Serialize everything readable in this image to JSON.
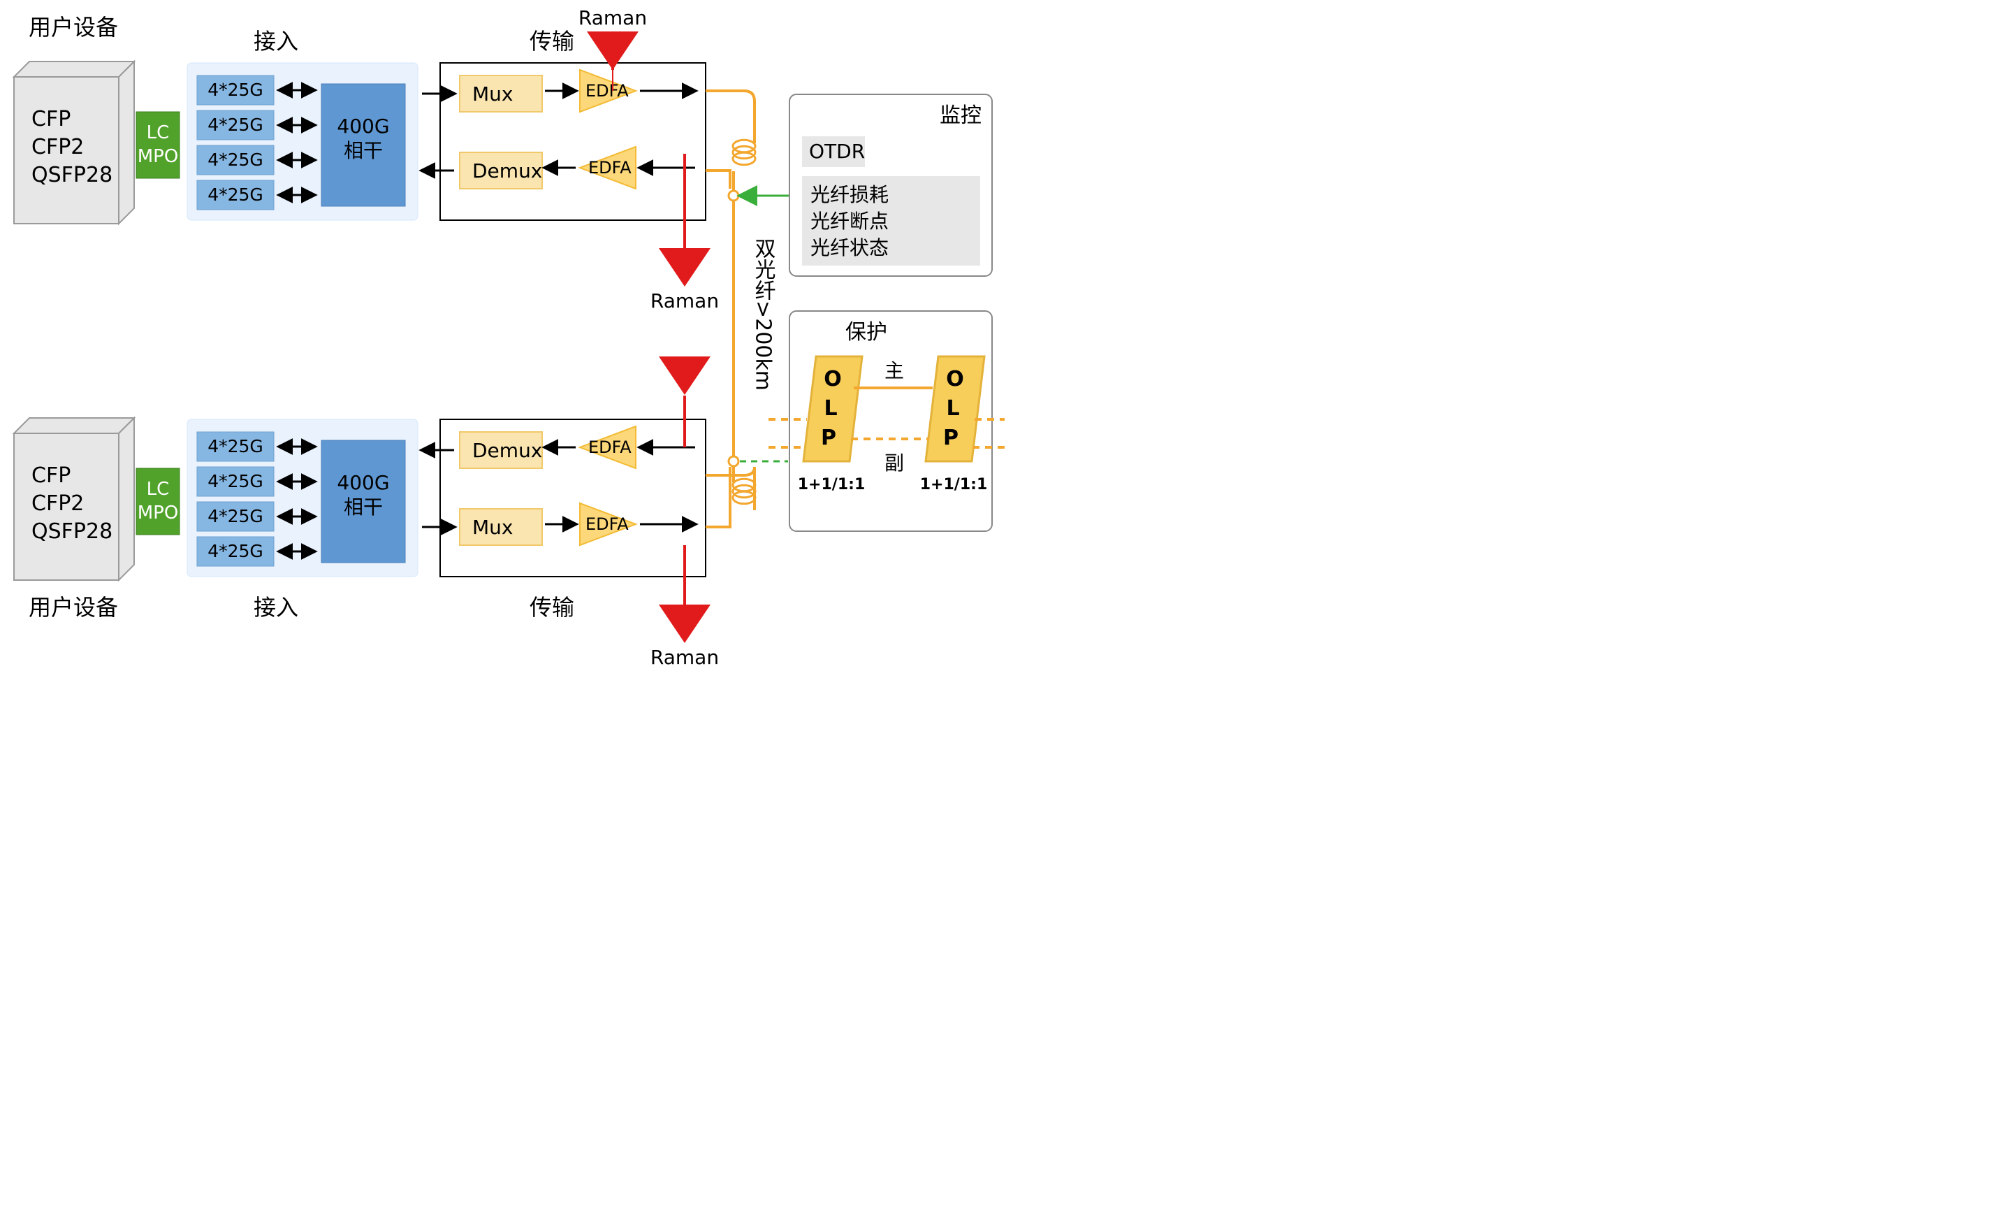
{
  "colors": {
    "gray_fill": "#e7e7e7",
    "gray_stroke": "#9a9a9a",
    "green": "#50a22a",
    "green_stroke": "#3d7d1f",
    "lightblue_bg": "#e9f2fd",
    "lightblue_stroke": "#d6e7fb",
    "blue_box": "#86b6e2",
    "blue_box_stroke": "#6fa3d3",
    "blue_strong": "#5f97d2",
    "blue_strong_stroke": "#4a80ba",
    "yellow_light": "#fae5b1",
    "yellow_stroke": "#f1c96a",
    "yellow_fill": "#fcd87a",
    "yellow_tri_stroke": "#f3bb35",
    "red": "#e11b1b",
    "orange": "#f3a72e",
    "green_arrow": "#3aae3a",
    "text": "#000000",
    "white": "#ffffff",
    "olp_yellow": "#f8ce5a",
    "olp_stroke": "#e3b23a"
  },
  "labels": {
    "user_equipment": "用户设备",
    "access": "接入",
    "transmission": "传输",
    "monitoring": "监控",
    "protection": "保护",
    "cfp": "CFP",
    "cfp2": "CFP2",
    "qsfp28": "QSFP28",
    "lc": "LC",
    "mpo": "MPO",
    "lane": "4*25G",
    "coherent_a": "400G",
    "coherent_b": "相干",
    "mux": "Mux",
    "demux": "Demux",
    "edfa": "EDFA",
    "raman": "Raman",
    "otdr": "OTDR",
    "fiber_loss": "光纤损耗",
    "fiber_break": "光纤断点",
    "fiber_status": "光纤状态",
    "dual_fiber": "双光纤>200km",
    "olp": "OLP",
    "olp_vert": "O\nL\nP",
    "main": "主",
    "backup": "副",
    "olp_mode": "1+1/1:1"
  },
  "sizes": {
    "big": 32,
    "med": 28,
    "sm": 24,
    "smb": 22
  }
}
